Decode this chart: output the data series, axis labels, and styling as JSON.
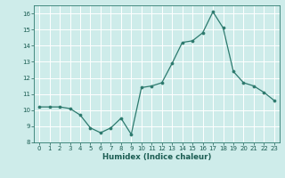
{
  "x": [
    0,
    1,
    2,
    3,
    4,
    5,
    6,
    7,
    8,
    9,
    10,
    11,
    12,
    13,
    14,
    15,
    16,
    17,
    18,
    19,
    20,
    21,
    22,
    23
  ],
  "y": [
    10.2,
    10.2,
    10.2,
    10.1,
    9.7,
    8.9,
    8.6,
    8.9,
    9.5,
    8.5,
    11.4,
    11.5,
    11.7,
    12.9,
    14.2,
    14.3,
    14.8,
    16.1,
    15.1,
    12.4,
    11.7,
    11.5,
    11.1,
    10.6
  ],
  "xlabel": "Humidex (Indice chaleur)",
  "ylim": [
    8,
    16.5
  ],
  "xlim": [
    -0.5,
    23.5
  ],
  "yticks": [
    8,
    9,
    10,
    11,
    12,
    13,
    14,
    15,
    16
  ],
  "xticks": [
    0,
    1,
    2,
    3,
    4,
    5,
    6,
    7,
    8,
    9,
    10,
    11,
    12,
    13,
    14,
    15,
    16,
    17,
    18,
    19,
    20,
    21,
    22,
    23
  ],
  "line_color": "#2d7a6e",
  "marker_color": "#2d7a6e",
  "bg_color": "#ceecea",
  "grid_color": "#ffffff",
  "axis_color": "#2d7a6e",
  "label_color": "#1a5c52",
  "tick_label_fontsize": 5.0,
  "xlabel_fontsize": 6.2,
  "linewidth": 0.9,
  "markersize": 2.2
}
